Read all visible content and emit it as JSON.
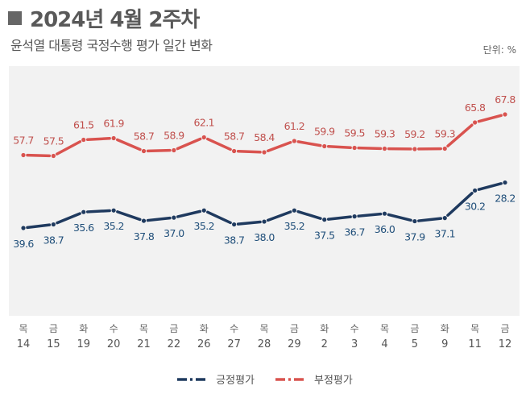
{
  "header": {
    "title": "2024년 4월 2주차",
    "subtitle": "윤석열 대통령 국정수행 평가 일간 변화",
    "unit": "단위: %"
  },
  "colors": {
    "positive": "#1f3a5f",
    "negative": "#d9534f",
    "panel": "#f2f2f2",
    "label_positive": "#1f4e79",
    "label_negative": "#c0504d"
  },
  "chart_data": {
    "type": "line",
    "title": "2024년 4월 2주차",
    "subtitle": "윤석열 대통령 국정수행 평가 일간 변화",
    "ylabel": "단위: %",
    "categories": [
      {
        "day": "목",
        "date": "14"
      },
      {
        "day": "금",
        "date": "15"
      },
      {
        "day": "화",
        "date": "19"
      },
      {
        "day": "수",
        "date": "20"
      },
      {
        "day": "목",
        "date": "21"
      },
      {
        "day": "금",
        "date": "22"
      },
      {
        "day": "화",
        "date": "26"
      },
      {
        "day": "수",
        "date": "27"
      },
      {
        "day": "목",
        "date": "28"
      },
      {
        "day": "금",
        "date": "29"
      },
      {
        "day": "화",
        "date": "2"
      },
      {
        "day": "수",
        "date": "3"
      },
      {
        "day": "목",
        "date": "4"
      },
      {
        "day": "금",
        "date": "5"
      },
      {
        "day": "화",
        "date": "9"
      },
      {
        "day": "목",
        "date": "11"
      },
      {
        "day": "금",
        "date": "12"
      }
    ],
    "series": [
      {
        "name": "긍정평가",
        "key": "positive",
        "values": [
          39.6,
          38.7,
          35.6,
          35.2,
          37.8,
          37.0,
          35.2,
          38.7,
          38.0,
          35.2,
          37.5,
          36.7,
          36.0,
          37.9,
          37.1,
          30.2,
          28.2
        ],
        "labels": [
          "39.6",
          "38.7",
          "35.6",
          "35.2",
          "37.8",
          "37.0",
          "35.2",
          "38.7",
          "38.0",
          "35.2",
          "37.5",
          "36.7",
          "36.0",
          "37.9",
          "37.1",
          "30.2",
          "28.2"
        ]
      },
      {
        "name": "부정평가",
        "key": "negative",
        "values": [
          57.7,
          57.5,
          61.5,
          61.9,
          58.7,
          58.9,
          62.1,
          58.7,
          58.4,
          61.2,
          59.9,
          59.5,
          59.3,
          59.2,
          59.3,
          65.8,
          67.8
        ],
        "labels": [
          "57.7",
          "57.5",
          "61.5",
          "61.9",
          "58.7",
          "58.9",
          "62.1",
          "58.7",
          "58.4",
          "61.2",
          "59.9",
          "59.5",
          "59.3",
          "59.2",
          "59.3",
          "65.8",
          "67.8"
        ]
      }
    ],
    "legend": {
      "position": "bottom-center",
      "items": [
        "긍정평가",
        "부정평가"
      ]
    },
    "grid": false
  }
}
